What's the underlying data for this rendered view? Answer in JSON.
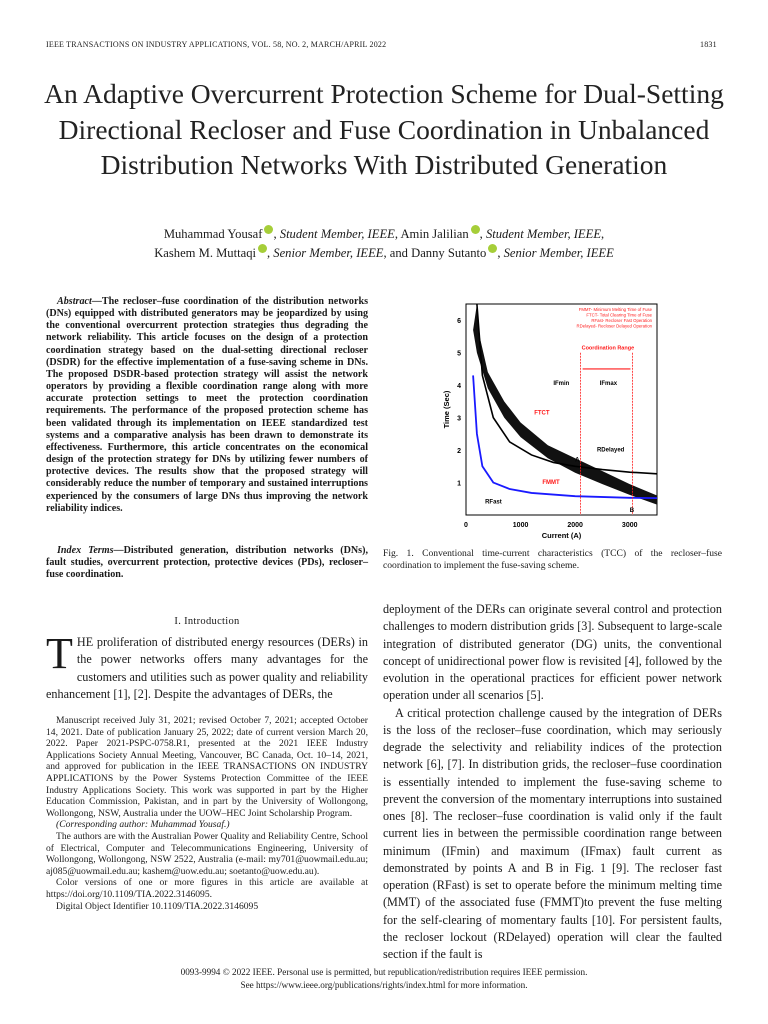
{
  "header": {
    "journal": "IEEE TRANSACTIONS ON INDUSTRY APPLICATIONS, VOL. 58, NO. 2, MARCH/APRIL 2022",
    "page": "1831"
  },
  "title": "An Adaptive Overcurrent Protection Scheme for Dual-Setting Directional Recloser and Fuse Coordination in Unbalanced Distribution Networks With Distributed Generation",
  "authors": [
    {
      "name": "Muhammad Yousaf",
      "role": "Student Member, IEEE"
    },
    {
      "name": "Amin Jalilian",
      "role": "Student Member, IEEE"
    },
    {
      "name": "Kashem M. Muttaqi",
      "role": "Senior Member, IEEE"
    },
    {
      "name": "Danny Sutanto",
      "role": "Senior Member, IEEE"
    }
  ],
  "abstract": {
    "label": "Abstract",
    "text": "—The recloser–fuse coordination of the distribution networks (DNs) equipped with distributed generators may be jeopardized by using the conventional overcurrent protection strategies thus degrading the network reliability. This article focuses on the design of a protection coordination strategy based on the dual-setting directional recloser (DSDR) for the effective implementation of a fuse-saving scheme in DNs. The proposed DSDR-based protection strategy will assist the network operators by providing a flexible coordination range along with more accurate protection settings to meet the protection coordination requirements. The performance of the proposed protection scheme has been validated through its implementation on IEEE standardized test systems and a comparative analysis has been drawn to demonstrate its effectiveness. Furthermore, this article concentrates on the economical design of the protection strategy for DNs by utilizing fewer numbers of protective devices. The results show that the proposed strategy will considerably reduce the number of temporary and sustained interruptions experienced by the consumers of large DNs thus improving the network reliability indices."
  },
  "index_terms": {
    "label": "Index Terms",
    "text": "—Distributed generation, distribution networks (DNs), fault studies, overcurrent protection, protective devices (PDs), recloser–fuse coordination."
  },
  "section": "I. Introduction",
  "intro": {
    "drop": "T",
    "text": "HE proliferation of distributed energy resources (DERs) in the power networks offers many advantages for the customers and utilities such as power quality and reliability enhancement [1], [2]. Despite the advantages of DERs, the"
  },
  "footnotes": [
    "Manuscript received July 31, 2021; revised October 7, 2021; accepted October 14, 2021. Date of publication January 25, 2022; date of current version March 20, 2022. Paper 2021-PSPC-0758.R1, presented at the 2021 IEEE Industry Applications Society Annual Meeting, Vancouver, BC Canada, Oct. 10–14, 2021, and approved for publication in the IEEE TRANSACTIONS ON INDUSTRY APPLICATIONS by the Power Systems Protection Committee of the IEEE Industry Applications Society. This work was supported in part by the Higher Education Commission, Pakistan, and in part by the University of Wollongong, Wollongong, NSW, Australia under the UOW–HEC Joint Scholarship Program.",
    "(Corresponding author: Muhammad Yousaf.)",
    "The authors are with the Australian Power Quality and Reliability Centre, School of Electrical, Computer and Telecommunications Engineering, University of Wollongong, Wollongong, NSW 2522, Australia (e-mail: my701@uowmail.edu.au; aj085@uowmail.edu.au; kashem@uow.edu.au; soetanto@uow.edu.au).",
    "Color versions of one or more figures in this article are available at https://doi.org/10.1109/TIA.2022.3146095.",
    "Digital Object Identifier 10.1109/TIA.2022.3146095"
  ],
  "right_column": [
    "deployment of the DERs can originate several control and protection challenges to modern distribution grids [3]. Subsequent to large-scale integration of distributed generator (DG) units, the conventional concept of unidirectional power flow is revisited [4], followed by the evolution in the operational practices for efficient power network operation under all scenarios [5].",
    "A critical protection challenge caused by the integration of DERs is the loss of the recloser–fuse coordination, which may seriously degrade the selectivity and reliability indices of the protection network [6], [7]. In distribution grids, the recloser–fuse coordination is essentially intended to implement the fuse-saving scheme to prevent the conversion of the momentary interruptions into sustained ones [8]. The recloser–fuse coordination is valid only if the fault current lies in between the permissible coordination range between minimum (IFmin) and maximum (IFmax) fault current as demonstrated by points A and B in Fig. 1 [9]. The recloser fast operation (RFast) is set to operate before the minimum melting time (MMT) of the associated fuse (FMMT)to prevent the fuse melting for the self-clearing of momentary faults [10]. For persistent faults, the recloser lockout (RDelayed) operation will clear the faulted section if the fault is"
  ],
  "figure": {
    "caption": "Fig. 1.    Conventional time-current characteristics (TCC) of the recloser–fuse coordination to implement the fuse-saving scheme.",
    "chart_data": {
      "type": "line",
      "xlabel": "Current (A)",
      "ylabel": "Time (Sec)",
      "xlim": [
        0,
        3500
      ],
      "ylim": [
        0,
        6.5
      ],
      "xticks": [
        "0",
        "1000",
        "2000",
        "3000"
      ],
      "yticks": [
        "1",
        "2",
        "3",
        "4",
        "5",
        "6"
      ],
      "legend": [
        "FMMT- Minimum Melting Time of Fuse",
        "FTCT- Total Clearing Time of Fuse",
        "RFast- Recloser Fast Operation",
        "RDelayed- Recloser Delayed Operation"
      ],
      "legend_placement": "top-right",
      "annotations": {
        "range": "Coordination Range",
        "ifmin": "IFmin",
        "ifmax": "IFmax",
        "ftct": "FTCT",
        "fmmt": "FMMT",
        "rdelayed": "RDelayed",
        "rfast": "RFast",
        "a": "A",
        "b": "B"
      },
      "coordination_range": [
        2100,
        3050
      ],
      "colors": {
        "fast": "#1a1aff",
        "delayed": "#000000",
        "fuse": "#000000",
        "annot": "#ff1a1a"
      },
      "series": [
        {
          "name": "RFast",
          "x": [
            130,
            200,
            300,
            500,
            800,
            1200,
            2000,
            3000,
            3500
          ],
          "y": [
            4.3,
            2.5,
            1.5,
            1.0,
            0.8,
            0.68,
            0.58,
            0.53,
            0.52
          ]
        },
        {
          "name": "RDelayed",
          "x": [
            200,
            300,
            500,
            800,
            1200,
            1600,
            2000,
            2500,
            3000,
            3500
          ],
          "y": [
            6.5,
            4.3,
            3.0,
            2.25,
            1.85,
            1.62,
            1.5,
            1.4,
            1.32,
            1.27
          ]
        },
        {
          "name": "FMMT",
          "x": [
            130,
            200,
            400,
            700,
            1000,
            1500,
            2000,
            2500,
            3000,
            3500
          ],
          "y": [
            5.7,
            5.0,
            3.9,
            3.0,
            2.4,
            1.75,
            1.3,
            0.95,
            0.62,
            0.32
          ]
        },
        {
          "name": "FTCT",
          "x": [
            200,
            250,
            400,
            700,
            1000,
            1500,
            2000,
            2500,
            3000,
            3500
          ],
          "y": [
            6.5,
            5.5,
            4.4,
            3.5,
            2.85,
            2.15,
            1.75,
            1.35,
            0.95,
            0.6
          ]
        }
      ]
    }
  }
}
